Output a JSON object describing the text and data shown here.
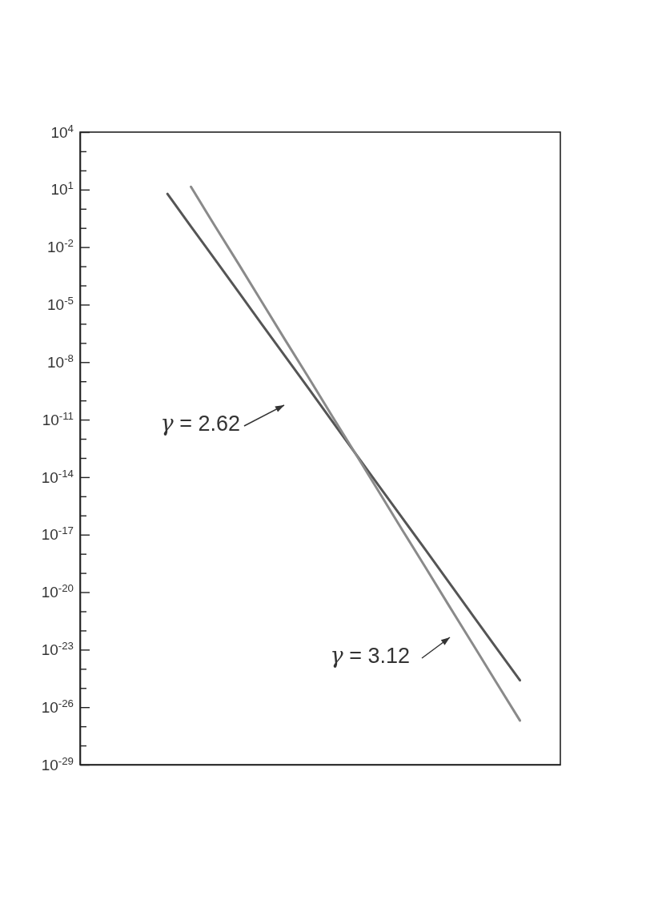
{
  "chart_data": {
    "type": "line",
    "log": "y",
    "grid": false,
    "marker": "none",
    "line_style": "solid",
    "categories": [
      null,
      null,
      null,
      null,
      null,
      null,
      null,
      null,
      null,
      null,
      null,
      null,
      null,
      null,
      null,
      null,
      null,
      null,
      null,
      null
    ],
    "ylim": [
      1e-29,
      10000.0
    ],
    "yticks": [
      {
        "value": 10000.0,
        "label": "10$^{4}$"
      },
      {
        "value": 1000.0,
        "label": null
      },
      {
        "value": 100.0,
        "label": null
      },
      {
        "value": 10.0,
        "label": "10$^{1}$"
      },
      {
        "value": 1,
        "label": null
      },
      {
        "value": 0.1,
        "label": null
      },
      {
        "value": 0.01,
        "label": "10$^{-2}$"
      },
      {
        "value": 0.001,
        "label": null
      },
      {
        "value": 0.0001,
        "label": null
      },
      {
        "value": 1e-05,
        "label": "10$^{-5}$"
      },
      {
        "value": 1e-06,
        "label": null
      },
      {
        "value": 1e-07,
        "label": null
      },
      {
        "value": 1e-08,
        "label": "10$^{-8}$"
      },
      {
        "value": 1e-09,
        "label": null
      },
      {
        "value": 1e-10,
        "label": null
      },
      {
        "value": 1e-11,
        "label": "10$^{-11}$"
      },
      {
        "value": 1e-12,
        "label": null
      },
      {
        "value": 1e-13,
        "label": null
      },
      {
        "value": 1e-14,
        "label": "10$^{-14}$"
      },
      {
        "value": 1e-15,
        "label": null
      },
      {
        "value": 1e-16,
        "label": null
      },
      {
        "value": 1e-17,
        "label": "10$^{-17}$"
      },
      {
        "value": 1e-18,
        "label": null
      },
      {
        "value": 1e-19,
        "label": null
      },
      {
        "value": 1e-20,
        "label": "10$^{-20}$"
      },
      {
        "value": 1e-21,
        "label": null
      },
      {
        "value": 1e-22,
        "label": null
      },
      {
        "value": 1e-23,
        "label": "10$^{-23}$"
      },
      {
        "value": 1e-24,
        "label": null
      },
      {
        "value": 1e-25,
        "label": null
      },
      {
        "value": 1e-26,
        "label": "10$^{-26}$"
      },
      {
        "value": 1e-27,
        "label": null
      },
      {
        "value": 1e-28,
        "label": null
      },
      {
        "value": 1e-29,
        "label": "10$^{-29}$"
      }
    ],
    "series": [
      {
        "color": "#555555",
        "values": [
          null,
          null,
          null,
          6.0,
          0.12,
          0.0025,
          5e-05,
          1e-06,
          2.1e-08,
          4.3e-10,
          8.7e-12,
          1.7e-13,
          3.5e-15,
          7.2e-17,
          1.5e-18,
          3e-20,
          6e-22,
          1.2e-23,
          2.5e-25,
          null
        ]
      },
      {
        "color": "#8a8a8a",
        "values": [
          null,
          null,
          null,
          null,
          14,
          0.14,
          0.0015,
          1.5e-05,
          1.5e-07,
          1.6e-09,
          1.6e-11,
          1.7e-13,
          1.7e-15,
          1.7e-17,
          1.8e-19,
          1.8e-21,
          1.9e-23,
          1.9e-25,
          2e-27,
          null
        ]
      }
    ],
    "annotations": [
      "γ = 2.62",
      "γ = 3.12"
    ]
  }
}
